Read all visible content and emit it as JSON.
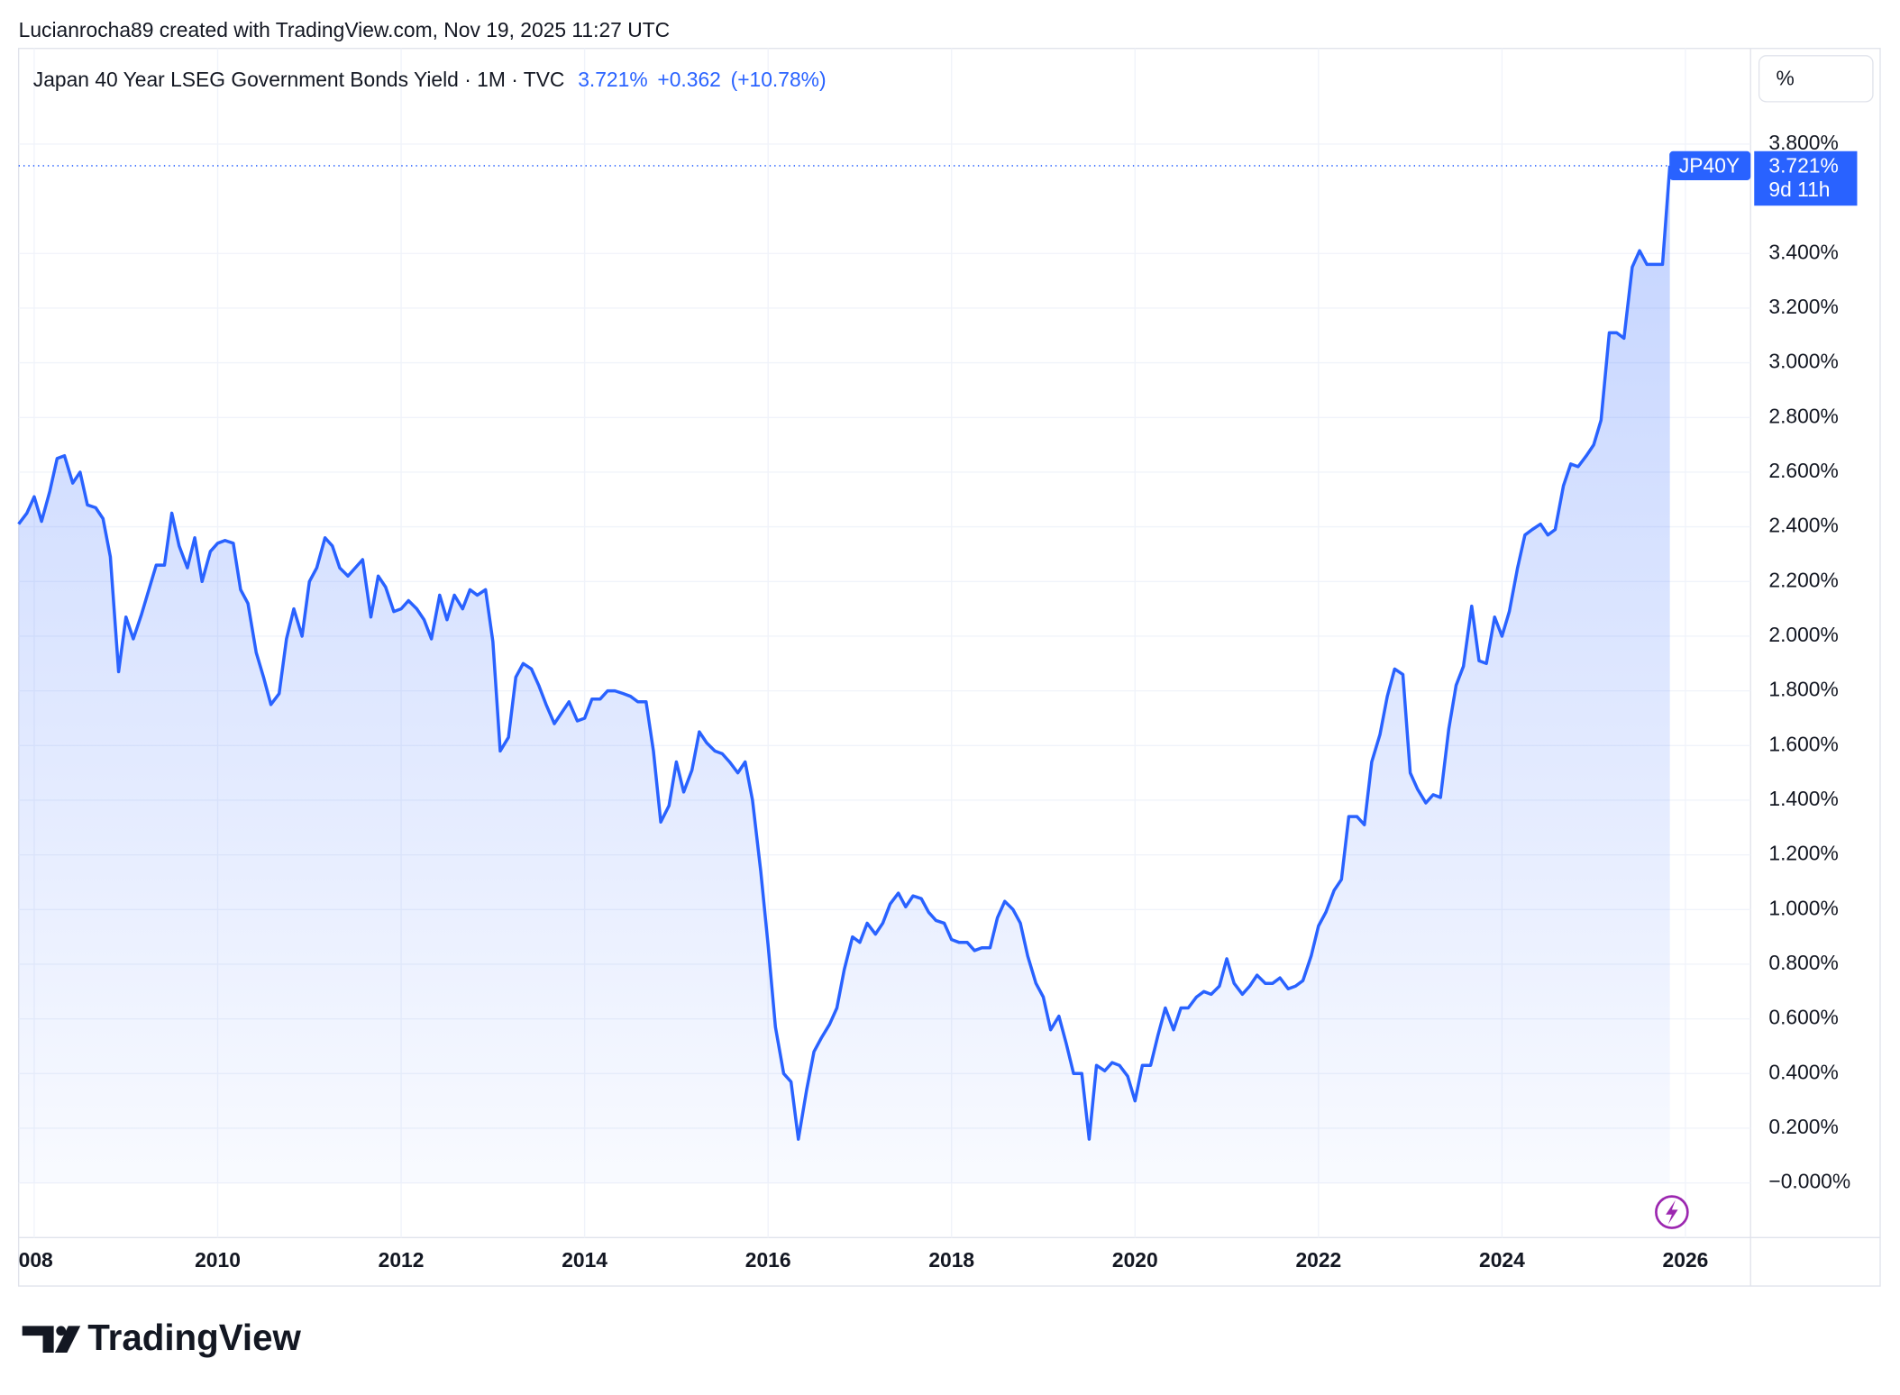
{
  "header": {
    "text": "Lucianrocha89 created with TradingView.com, Nov 19, 2025 11:27 UTC"
  },
  "chart_data": {
    "type": "area",
    "title": "Japan 40 Year LSEG Government Bonds Yield · 1M · TVC",
    "legend_values": {
      "last": "3.721%",
      "change": "+0.362",
      "change_pct": "(+10.78%)"
    },
    "scale_button": "%",
    "price_tag": {
      "symbol": "JP40Y",
      "price": "3.721%",
      "countdown": "9d 11h"
    },
    "x": [
      2007.83,
      2007.92,
      2008,
      2008.08,
      2008.17,
      2008.25,
      2008.33,
      2008.42,
      2008.5,
      2008.58,
      2008.67,
      2008.75,
      2008.83,
      2008.92,
      2009,
      2009.08,
      2009.17,
      2009.25,
      2009.33,
      2009.42,
      2009.5,
      2009.58,
      2009.67,
      2009.75,
      2009.83,
      2009.92,
      2010,
      2010.08,
      2010.17,
      2010.25,
      2010.33,
      2010.42,
      2010.5,
      2010.58,
      2010.67,
      2010.75,
      2010.83,
      2010.92,
      2011,
      2011.08,
      2011.17,
      2011.25,
      2011.33,
      2011.42,
      2011.5,
      2011.58,
      2011.67,
      2011.75,
      2011.83,
      2011.92,
      2012,
      2012.08,
      2012.17,
      2012.25,
      2012.33,
      2012.42,
      2012.5,
      2012.58,
      2012.67,
      2012.75,
      2012.83,
      2012.92,
      2013,
      2013.08,
      2013.17,
      2013.25,
      2013.33,
      2013.42,
      2013.5,
      2013.58,
      2013.67,
      2013.75,
      2013.83,
      2013.92,
      2014,
      2014.08,
      2014.17,
      2014.25,
      2014.33,
      2014.42,
      2014.5,
      2014.58,
      2014.67,
      2014.75,
      2014.83,
      2014.92,
      2015,
      2015.08,
      2015.17,
      2015.25,
      2015.33,
      2015.42,
      2015.5,
      2015.58,
      2015.67,
      2015.75,
      2015.83,
      2015.92,
      2016,
      2016.08,
      2016.17,
      2016.25,
      2016.33,
      2016.42,
      2016.5,
      2016.58,
      2016.67,
      2016.75,
      2016.83,
      2016.92,
      2017,
      2017.08,
      2017.17,
      2017.25,
      2017.33,
      2017.42,
      2017.5,
      2017.58,
      2017.67,
      2017.75,
      2017.83,
      2017.92,
      2018,
      2018.08,
      2018.17,
      2018.25,
      2018.33,
      2018.42,
      2018.5,
      2018.58,
      2018.67,
      2018.75,
      2018.83,
      2018.92,
      2019,
      2019.08,
      2019.17,
      2019.25,
      2019.33,
      2019.42,
      2019.5,
      2019.58,
      2019.67,
      2019.75,
      2019.83,
      2019.92,
      2020,
      2020.08,
      2020.17,
      2020.25,
      2020.33,
      2020.42,
      2020.5,
      2020.58,
      2020.67,
      2020.75,
      2020.83,
      2020.92,
      2021,
      2021.08,
      2021.17,
      2021.25,
      2021.33,
      2021.42,
      2021.5,
      2021.58,
      2021.67,
      2021.75,
      2021.83,
      2021.92,
      2022,
      2022.08,
      2022.17,
      2022.25,
      2022.33,
      2022.42,
      2022.5,
      2022.58,
      2022.67,
      2022.75,
      2022.83,
      2022.92,
      2023,
      2023.08,
      2023.17,
      2023.25,
      2023.33,
      2023.42,
      2023.5,
      2023.58,
      2023.67,
      2023.75,
      2023.83,
      2023.92,
      2024,
      2024.08,
      2024.17,
      2024.25,
      2024.33,
      2024.42,
      2024.5,
      2024.58,
      2024.67,
      2024.75,
      2024.83,
      2024.92,
      2025,
      2025.08,
      2025.17,
      2025.25,
      2025.33,
      2025.42,
      2025.5,
      2025.58,
      2025.67,
      2025.75,
      2025.83
    ],
    "series": [
      {
        "name": "JP40Y",
        "color": "#2962ff",
        "values": [
          2.41,
          2.45,
          2.51,
          2.42,
          2.53,
          2.65,
          2.66,
          2.56,
          2.6,
          2.48,
          2.47,
          2.43,
          2.29,
          1.87,
          2.07,
          1.99,
          2.08,
          2.17,
          2.26,
          2.26,
          2.45,
          2.33,
          2.25,
          2.36,
          2.2,
          2.31,
          2.34,
          2.35,
          2.34,
          2.17,
          2.12,
          1.94,
          1.85,
          1.75,
          1.79,
          1.99,
          2.1,
          2.0,
          2.2,
          2.25,
          2.36,
          2.33,
          2.25,
          2.22,
          2.25,
          2.28,
          2.07,
          2.22,
          2.18,
          2.09,
          2.1,
          2.13,
          2.1,
          2.06,
          1.99,
          2.15,
          2.06,
          2.15,
          2.1,
          2.17,
          2.15,
          2.17,
          1.98,
          1.58,
          1.63,
          1.85,
          1.9,
          1.88,
          1.82,
          1.75,
          1.68,
          1.72,
          1.76,
          1.69,
          1.7,
          1.77,
          1.77,
          1.8,
          1.8,
          1.79,
          1.78,
          1.76,
          1.76,
          1.58,
          1.32,
          1.38,
          1.54,
          1.43,
          1.51,
          1.65,
          1.61,
          1.58,
          1.57,
          1.54,
          1.5,
          1.54,
          1.4,
          1.14,
          0.87,
          0.57,
          0.4,
          0.37,
          0.16,
          0.34,
          0.48,
          0.53,
          0.58,
          0.64,
          0.78,
          0.9,
          0.88,
          0.95,
          0.91,
          0.95,
          1.02,
          1.06,
          1.01,
          1.05,
          1.04,
          0.99,
          0.96,
          0.95,
          0.89,
          0.88,
          0.88,
          0.85,
          0.86,
          0.86,
          0.97,
          1.03,
          1.0,
          0.95,
          0.83,
          0.73,
          0.68,
          0.56,
          0.61,
          0.51,
          0.4,
          0.4,
          0.16,
          0.43,
          0.41,
          0.44,
          0.43,
          0.39,
          0.3,
          0.43,
          0.43,
          0.54,
          0.64,
          0.56,
          0.64,
          0.64,
          0.68,
          0.7,
          0.69,
          0.72,
          0.82,
          0.73,
          0.69,
          0.72,
          0.76,
          0.73,
          0.73,
          0.75,
          0.71,
          0.72,
          0.74,
          0.83,
          0.94,
          0.99,
          1.07,
          1.11,
          1.34,
          1.34,
          1.31,
          1.54,
          1.64,
          1.78,
          1.88,
          1.86,
          1.5,
          1.44,
          1.39,
          1.42,
          1.41,
          1.66,
          1.82,
          1.89,
          2.11,
          1.91,
          1.9,
          2.07,
          2.0,
          2.09,
          2.25,
          2.37,
          2.39,
          2.41,
          2.37,
          2.39,
          2.55,
          2.63,
          2.62,
          2.66,
          2.7,
          2.79,
          3.11,
          3.11,
          3.09,
          3.35,
          3.41,
          3.36,
          3.36,
          3.36,
          3.721
        ]
      }
    ],
    "xlim": [
      2007.83,
      2026.71
    ],
    "ylim": [
      -0.2,
      4.15
    ],
    "xticks": [
      {
        "value": 2008,
        "label": "008"
      },
      2010,
      2012,
      2014,
      2016,
      2018,
      2020,
      2022,
      2024,
      2026
    ],
    "yticks": [
      {
        "value": 3.8,
        "label": "3.800%"
      },
      {
        "value": 3.4,
        "label": "3.400%"
      },
      {
        "value": 3.2,
        "label": "3.200%"
      },
      {
        "value": 3.0,
        "label": "3.000%"
      },
      {
        "value": 2.8,
        "label": "2.800%"
      },
      {
        "value": 2.6,
        "label": "2.600%"
      },
      {
        "value": 2.4,
        "label": "2.400%"
      },
      {
        "value": 2.2,
        "label": "2.200%"
      },
      {
        "value": 2.0,
        "label": "2.000%"
      },
      {
        "value": 1.8,
        "label": "1.800%"
      },
      {
        "value": 1.6,
        "label": "1.600%"
      },
      {
        "value": 1.4,
        "label": "1.400%"
      },
      {
        "value": 1.2,
        "label": "1.200%"
      },
      {
        "value": 1.0,
        "label": "1.000%"
      },
      {
        "value": 0.8,
        "label": "0.800%"
      },
      {
        "value": 0.6,
        "label": "0.600%"
      },
      {
        "value": 0.4,
        "label": "0.400%"
      },
      {
        "value": 0.2,
        "label": "0.200%"
      },
      {
        "value": 0,
        "label": "−0.000%"
      }
    ],
    "grid": true
  },
  "footer": {
    "logo": "TradingView"
  }
}
